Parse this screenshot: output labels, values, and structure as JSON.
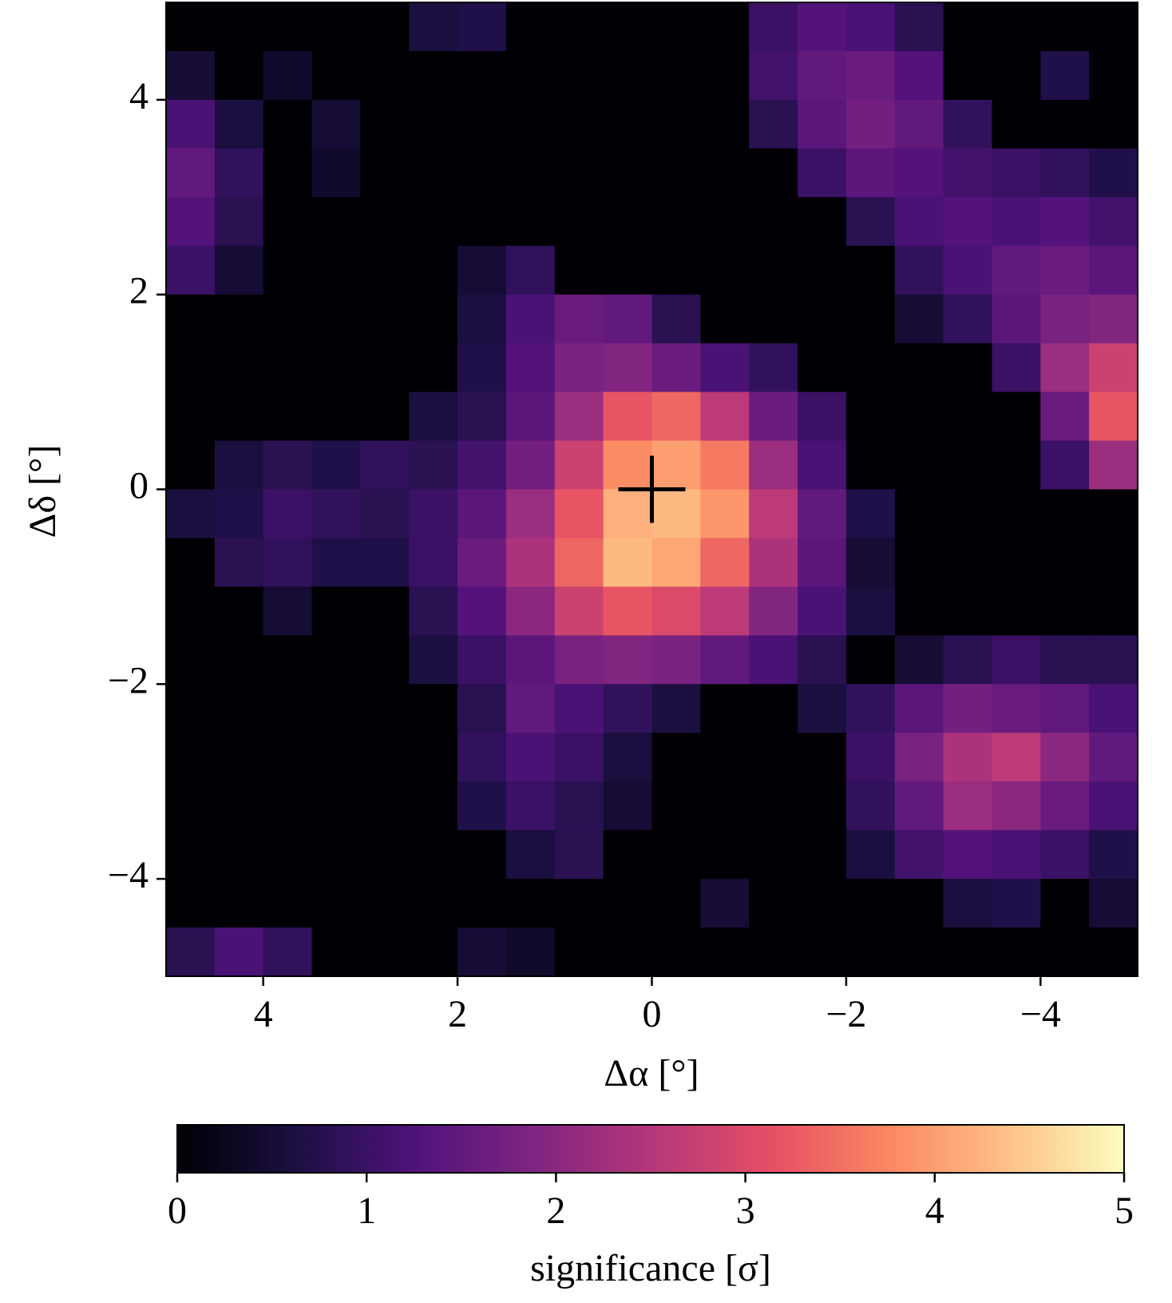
{
  "chart_data": {
    "type": "heatmap",
    "xlabel": "Δα [°]",
    "ylabel": "Δδ [°]",
    "colorbar_label": "significance [σ]",
    "colormap": "magma",
    "xlim": [
      5,
      -5
    ],
    "ylim": [
      -5,
      5
    ],
    "xticks": [
      4,
      2,
      0,
      {
        "value": -2,
        "label": "−2"
      },
      {
        "value": -4,
        "label": "−4"
      }
    ],
    "yticks": [
      {
        "value": -4,
        "label": "−4"
      },
      {
        "value": -2,
        "label": "−2"
      },
      0,
      2,
      4
    ],
    "clim": [
      0,
      5
    ],
    "cticks": [
      0,
      1,
      2,
      3,
      4,
      5
    ],
    "marker": {
      "x": 0,
      "y": 0
    },
    "x": [
      4.75,
      4.25,
      3.75,
      3.25,
      2.75,
      2.25,
      1.75,
      1.25,
      0.75,
      0.25,
      -0.25,
      -0.75,
      -1.25,
      -1.75,
      -2.25,
      -2.75,
      -3.25,
      -3.75,
      -4.25,
      -4.75
    ],
    "y": [
      4.75,
      4.25,
      3.75,
      3.25,
      2.75,
      2.25,
      1.75,
      1.25,
      0.75,
      0.25,
      -0.25,
      -0.75,
      -1.25,
      -1.75,
      -2.25,
      -2.75,
      -3.25,
      -3.75,
      -4.25,
      -4.75
    ],
    "z": [
      [
        0,
        0,
        0,
        0,
        0,
        0.6,
        0.7,
        0,
        0,
        0,
        0,
        0,
        1.0,
        1.3,
        1.2,
        0.8,
        0,
        0,
        0,
        0
      ],
      [
        0.5,
        0,
        0.4,
        0,
        0,
        0,
        0,
        0,
        0,
        0,
        0,
        0,
        1.1,
        1.5,
        1.6,
        1.3,
        0,
        0,
        0.7,
        0
      ],
      [
        1.2,
        0.6,
        0,
        0.5,
        0,
        0,
        0,
        0,
        0,
        0,
        0,
        0,
        0.8,
        1.4,
        1.7,
        1.5,
        0.9,
        0,
        0,
        0
      ],
      [
        1.5,
        0.9,
        0,
        0.4,
        0,
        0,
        0,
        0,
        0,
        0,
        0,
        0,
        0,
        1.0,
        1.4,
        1.3,
        1.1,
        1.0,
        0.9,
        0.7
      ],
      [
        1.3,
        0.8,
        0,
        0,
        0,
        0,
        0,
        0,
        0,
        0,
        0,
        0,
        0,
        0,
        0.8,
        1.2,
        1.3,
        1.2,
        1.3,
        1.1
      ],
      [
        1.0,
        0.5,
        0,
        0,
        0,
        0,
        0.5,
        0.9,
        0,
        0,
        0,
        0,
        0,
        0,
        0,
        0.9,
        1.2,
        1.5,
        1.6,
        1.4
      ],
      [
        0,
        0,
        0,
        0,
        0,
        0,
        0.6,
        1.2,
        1.6,
        1.5,
        0.8,
        0,
        0,
        0,
        0,
        0.5,
        0.9,
        1.4,
        1.8,
        1.9
      ],
      [
        0,
        0,
        0,
        0,
        0,
        0,
        0.7,
        1.3,
        1.8,
        1.9,
        1.6,
        1.2,
        0.9,
        0,
        0,
        0,
        0,
        1.0,
        2.2,
        2.8
      ],
      [
        0,
        0,
        0,
        0,
        0,
        0.6,
        0.8,
        1.4,
        2.2,
        3.2,
        3.4,
        2.6,
        1.6,
        1.0,
        0,
        0,
        0,
        0,
        1.6,
        3.2
      ],
      [
        0,
        0.6,
        0.8,
        0.7,
        0.9,
        0.8,
        1.1,
        1.7,
        2.8,
        3.8,
        4.0,
        3.6,
        2.2,
        1.2,
        0,
        0,
        0,
        0,
        1.0,
        2.2
      ],
      [
        0.6,
        0.7,
        1.0,
        0.9,
        0.8,
        1.0,
        1.4,
        2.2,
        3.2,
        4.2,
        4.3,
        3.9,
        2.6,
        1.5,
        0.7,
        0,
        0,
        0,
        0,
        0
      ],
      [
        0,
        0.8,
        0.9,
        0.7,
        0.7,
        1.0,
        1.6,
        2.4,
        3.4,
        4.3,
        4.1,
        3.4,
        2.4,
        1.4,
        0.5,
        0,
        0,
        0,
        0,
        0
      ],
      [
        0,
        0,
        0.5,
        0,
        0,
        0.8,
        1.3,
        2.0,
        2.8,
        3.2,
        3.0,
        2.6,
        1.9,
        1.2,
        0.6,
        0,
        0,
        0,
        0,
        0
      ],
      [
        0,
        0,
        0,
        0,
        0,
        0.6,
        1.0,
        1.4,
        1.8,
        1.9,
        1.8,
        1.5,
        1.2,
        0.8,
        0,
        0.5,
        0.8,
        1.0,
        0.8,
        0.8
      ],
      [
        0,
        0,
        0,
        0,
        0,
        0,
        0.8,
        1.5,
        1.2,
        0.9,
        0.6,
        0,
        0,
        0.6,
        0.9,
        1.4,
        1.7,
        1.6,
        1.5,
        1.2
      ],
      [
        0,
        0,
        0,
        0,
        0,
        0,
        0.9,
        1.2,
        1.0,
        0.6,
        0,
        0,
        0,
        0,
        1.0,
        1.8,
        2.4,
        2.6,
        2.0,
        1.5
      ],
      [
        0,
        0,
        0,
        0,
        0,
        0,
        0.7,
        1.0,
        0.8,
        0.5,
        0,
        0,
        0,
        0,
        0.9,
        1.5,
        2.2,
        2.0,
        1.6,
        1.2
      ],
      [
        0,
        0,
        0,
        0,
        0,
        0,
        0,
        0.6,
        0.8,
        0,
        0,
        0,
        0,
        0,
        0.6,
        1.1,
        1.3,
        1.2,
        1.0,
        0.7
      ],
      [
        0,
        0,
        0,
        0,
        0,
        0,
        0,
        0,
        0,
        0,
        0,
        0.5,
        0,
        0,
        0,
        0,
        0.6,
        0.7,
        0,
        0.5
      ],
      [
        0.8,
        1.2,
        0.9,
        0,
        0,
        0,
        0.5,
        0.4,
        0,
        0,
        0,
        0,
        0,
        0,
        0,
        0,
        0,
        0,
        0,
        0
      ]
    ]
  }
}
